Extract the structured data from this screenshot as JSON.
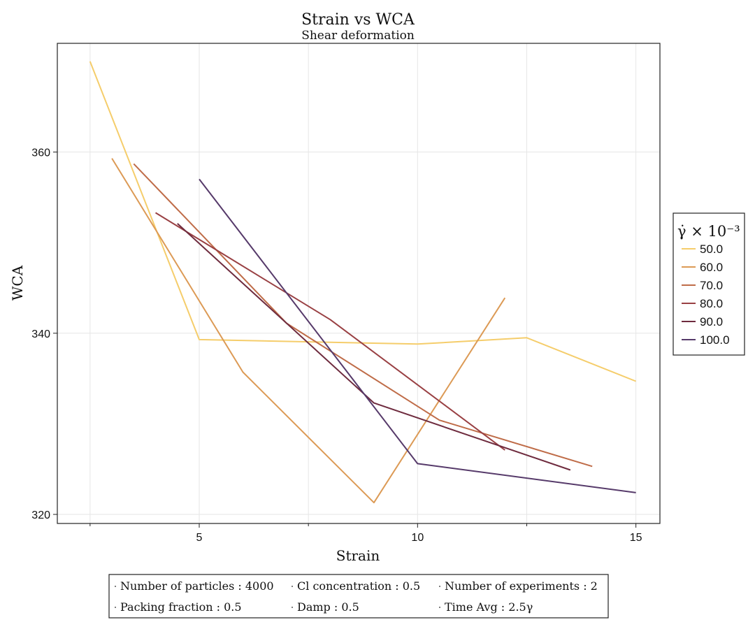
{
  "chart_data": {
    "type": "line",
    "title": "Strain vs WCA",
    "subtitle": "Shear deformation",
    "xlabel": "Strain",
    "ylabel": "WCA",
    "xlim": [
      1.75,
      15.55
    ],
    "ylim": [
      319.0,
      372.0
    ],
    "xticks": [
      5,
      10,
      15
    ],
    "xtick_labels": [
      "5",
      "10",
      "15"
    ],
    "xminor_ticks": [
      2.5,
      7.5,
      12.5
    ],
    "yticks": [
      320,
      340,
      360
    ],
    "ytick_labels": [
      "320",
      "340",
      "360"
    ],
    "grid": true,
    "legend_position": "right",
    "legend_title": "γ̇ × 10⁻³",
    "series": [
      {
        "name": "50.0",
        "color": "#f5cd6b",
        "x": [
          2.5,
          5.0,
          10.0,
          12.5,
          15.0
        ],
        "y": [
          370.0,
          339.3,
          338.8,
          339.5,
          334.7
        ]
      },
      {
        "name": "60.0",
        "color": "#dc9a55",
        "x": [
          3.0,
          6.0,
          9.0,
          12.0
        ],
        "y": [
          359.3,
          335.7,
          321.3,
          343.9
        ]
      },
      {
        "name": "70.0",
        "color": "#bf6c48",
        "x": [
          3.5,
          7.0,
          10.5,
          14.0
        ],
        "y": [
          358.7,
          341.1,
          330.4,
          325.3
        ]
      },
      {
        "name": "80.0",
        "color": "#994043",
        "x": [
          4.0,
          8.0,
          12.0
        ],
        "y": [
          353.3,
          341.5,
          327.1
        ]
      },
      {
        "name": "90.0",
        "color": "#6e2b3e",
        "x": [
          4.5,
          9.0,
          13.5
        ],
        "y": [
          352.1,
          332.3,
          324.9
        ]
      },
      {
        "name": "100.0",
        "color": "#563a6a",
        "x": [
          5.0,
          10.0,
          15.0
        ],
        "y": [
          357.0,
          325.6,
          322.4
        ]
      }
    ]
  },
  "info_box": {
    "items": [
      "Number of particles : 4000",
      "Cl concentration : 0.5",
      "Number of experiments : 2",
      "Packing fraction : 0.5",
      "Damp : 0.5",
      "Time Avg : 2.5γ"
    ]
  }
}
